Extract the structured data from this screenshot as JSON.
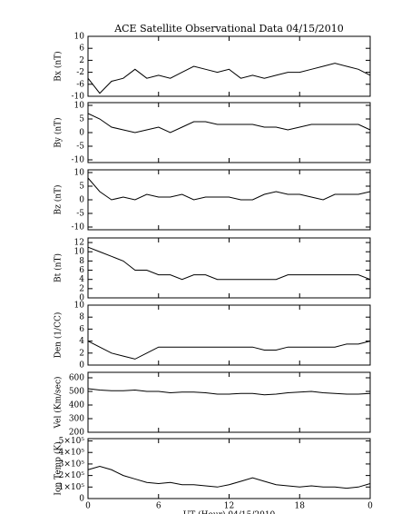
{
  "charts": [
    {
      "chart_data": {
        "type": "line",
        "title": "ACE Satellite Observational Data  04/15/2010",
        "ylabel": "Bx (nT)",
        "x": [
          0,
          1,
          2,
          3,
          4,
          5,
          6,
          7,
          8,
          9,
          10,
          11,
          12,
          13,
          14,
          15,
          16,
          17,
          18,
          19,
          20,
          21,
          22,
          23,
          24
        ],
        "series": [
          {
            "color": "#000000",
            "values": [
              -4,
              -9,
              -5,
              -4,
              -1,
              -4,
              -3,
              -4,
              -2,
              0,
              -1,
              -2,
              -1,
              -4,
              -3,
              -4,
              -3,
              -2,
              -2,
              -1,
              0,
              1,
              0,
              -1,
              -3
            ]
          }
        ],
        "xlim": [
          0,
          24
        ],
        "xticks": [
          0,
          6,
          12,
          18,
          24
        ],
        "ylim": [
          -10,
          10
        ],
        "yticks": [
          -10,
          -6,
          -2,
          2,
          6,
          10
        ]
      }
    },
    {
      "chart_data": {
        "type": "line",
        "ylabel": "By (nT)",
        "x": [
          0,
          1,
          2,
          3,
          4,
          5,
          6,
          7,
          8,
          9,
          10,
          11,
          12,
          13,
          14,
          15,
          16,
          17,
          18,
          19,
          20,
          21,
          22,
          23,
          24
        ],
        "series": [
          {
            "color": "#000000",
            "values": [
              7,
              5,
              2,
              1,
              0,
              1,
              2,
              0,
              2,
              4,
              4,
              3,
              3,
              3,
              3,
              2,
              2,
              1,
              2,
              3,
              3,
              3,
              3,
              3,
              1
            ]
          }
        ],
        "xlim": [
          0,
          24
        ],
        "xticks": [
          0,
          6,
          12,
          18,
          24
        ],
        "ylim": [
          -11,
          11
        ],
        "yticks": [
          -10,
          -5,
          0,
          5,
          10
        ]
      }
    },
    {
      "chart_data": {
        "type": "line",
        "ylabel": "Bz (nT)",
        "x": [
          0,
          1,
          2,
          3,
          4,
          5,
          6,
          7,
          8,
          9,
          10,
          11,
          12,
          13,
          14,
          15,
          16,
          17,
          18,
          19,
          20,
          21,
          22,
          23,
          24
        ],
        "series": [
          {
            "color": "#000000",
            "values": [
              8,
              3,
              0,
              1,
              0,
              2,
              1,
              1,
              2,
              0,
              1,
              1,
              1,
              0,
              0,
              2,
              3,
              2,
              2,
              1,
              0,
              2,
              2,
              2,
              3
            ]
          }
        ],
        "xlim": [
          0,
          24
        ],
        "xticks": [
          0,
          6,
          12,
          18,
          24
        ],
        "ylim": [
          -11,
          11
        ],
        "yticks": [
          -10,
          -5,
          0,
          5,
          10
        ]
      }
    },
    {
      "chart_data": {
        "type": "line",
        "ylabel": "Bt (nT)",
        "x": [
          0,
          1,
          2,
          3,
          4,
          5,
          6,
          7,
          8,
          9,
          10,
          11,
          12,
          13,
          14,
          15,
          16,
          17,
          18,
          19,
          20,
          21,
          22,
          23,
          24
        ],
        "series": [
          {
            "color": "#000000",
            "values": [
              11,
              10,
              9,
              8,
              6,
              6,
              5,
              5,
              4,
              5,
              5,
              4,
              4,
              4,
              4,
              4,
              4,
              5,
              5,
              5,
              5,
              5,
              5,
              5,
              4
            ]
          }
        ],
        "xlim": [
          0,
          24
        ],
        "xticks": [
          0,
          6,
          12,
          18,
          24
        ],
        "ylim": [
          0,
          13
        ],
        "yticks": [
          0,
          2,
          4,
          6,
          8,
          10,
          12
        ]
      }
    },
    {
      "chart_data": {
        "type": "line",
        "ylabel": "Den (1/CC)",
        "x": [
          0,
          1,
          2,
          3,
          4,
          5,
          6,
          7,
          8,
          9,
          10,
          11,
          12,
          13,
          14,
          15,
          16,
          17,
          18,
          19,
          20,
          21,
          22,
          23,
          24
        ],
        "series": [
          {
            "color": "#000000",
            "values": [
              4,
              3,
              2,
              1.5,
              1,
              2,
              3,
              3,
              3,
              3,
              3,
              3,
              3,
              3,
              3,
              2.5,
              2.5,
              3,
              3,
              3,
              3,
              3,
              3.5,
              3.5,
              4
            ]
          }
        ],
        "xlim": [
          0,
          24
        ],
        "xticks": [
          0,
          6,
          12,
          18,
          24
        ],
        "ylim": [
          0,
          10
        ],
        "yticks": [
          0,
          2,
          4,
          6,
          8,
          10
        ]
      }
    },
    {
      "chart_data": {
        "type": "line",
        "ylabel": "Vel (Km/sec)",
        "x": [
          0,
          1,
          2,
          3,
          4,
          5,
          6,
          7,
          8,
          9,
          10,
          11,
          12,
          13,
          14,
          15,
          16,
          17,
          18,
          19,
          20,
          21,
          22,
          23,
          24
        ],
        "series": [
          {
            "color": "#000000",
            "values": [
              520,
              510,
              505,
              505,
              510,
              500,
              500,
              490,
              495,
              495,
              490,
              480,
              480,
              485,
              485,
              475,
              480,
              490,
              495,
              500,
              490,
              485,
              480,
              480,
              485
            ]
          }
        ],
        "xlim": [
          0,
          24
        ],
        "xticks": [
          0,
          6,
          12,
          18,
          24
        ],
        "ylim": [
          200,
          640
        ],
        "yticks": [
          200,
          300,
          400,
          500,
          600
        ]
      }
    },
    {
      "chart_data": {
        "type": "line",
        "ylabel": "Ion Temp (K)",
        "xlabel": "UT (Hour)  04/15/2010",
        "x": [
          0,
          1,
          2,
          3,
          4,
          5,
          6,
          7,
          8,
          9,
          10,
          11,
          12,
          13,
          14,
          15,
          16,
          17,
          18,
          19,
          20,
          21,
          22,
          23,
          24
        ],
        "series": [
          {
            "color": "#000000",
            "values": [
              250000,
              280000,
              250000,
              200000,
              170000,
              140000,
              130000,
              140000,
              120000,
              120000,
              110000,
              100000,
              120000,
              150000,
              180000,
              150000,
              120000,
              110000,
              100000,
              110000,
              100000,
              100000,
              90000,
              100000,
              130000
            ]
          }
        ],
        "xlim": [
          0,
          24
        ],
        "xticks": [
          0,
          6,
          12,
          18,
          {
            "value": 24,
            "label": "0"
          }
        ],
        "ylim": [
          0,
          520000
        ],
        "yticks": [
          0,
          {
            "value": 100000,
            "label": "1×10⁵"
          },
          {
            "value": 200000,
            "label": "2×10⁵"
          },
          {
            "value": 300000,
            "label": "3×10⁵"
          },
          {
            "value": 400000,
            "label": "4×10⁵"
          },
          {
            "value": 500000,
            "label": "5×10⁵"
          }
        ]
      }
    }
  ]
}
